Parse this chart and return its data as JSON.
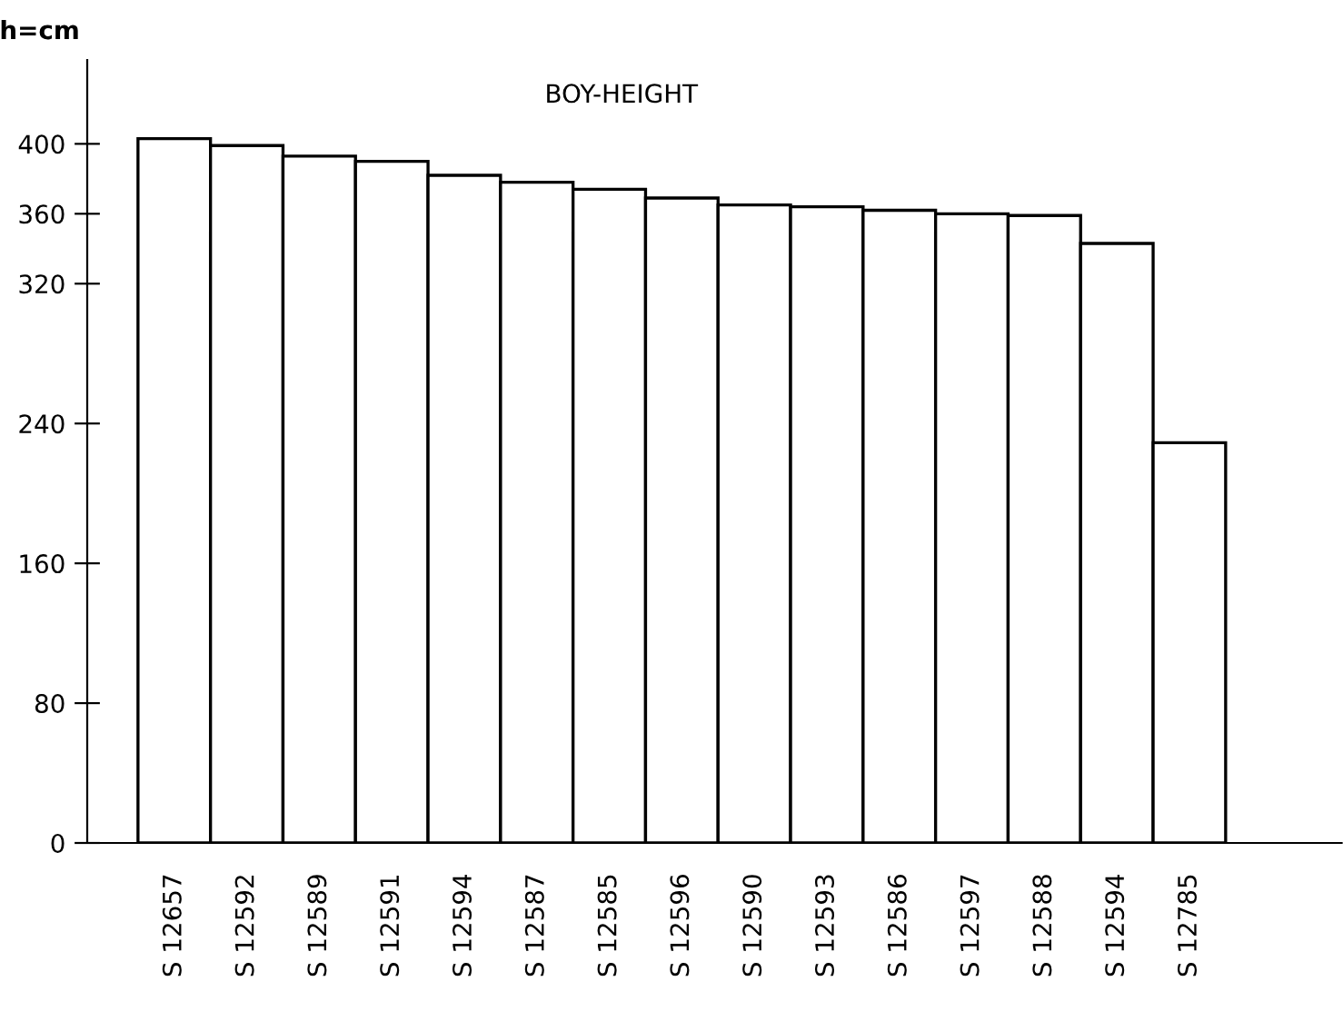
{
  "chart_data": {
    "type": "bar",
    "title": "BOY-HEIGHT",
    "ylabel": "h=cm",
    "categories": [
      "S 12657",
      "S 12592",
      "S 12589",
      "S 12591",
      "S 12594",
      "S 12587",
      "S 12585",
      "S 12596",
      "S 12590",
      "S 12593",
      "S 12586",
      "S 12597",
      "S 12588",
      "S 12594",
      "S 12785"
    ],
    "values": [
      403,
      399,
      393,
      390,
      382,
      378,
      374,
      369,
      365,
      364,
      362,
      360,
      359,
      343,
      229
    ],
    "color": "#ffffff",
    "ylim": [
      0,
      448
    ],
    "yticks": [
      0,
      80,
      160,
      240,
      320,
      360,
      400
    ],
    "grid": false
  }
}
